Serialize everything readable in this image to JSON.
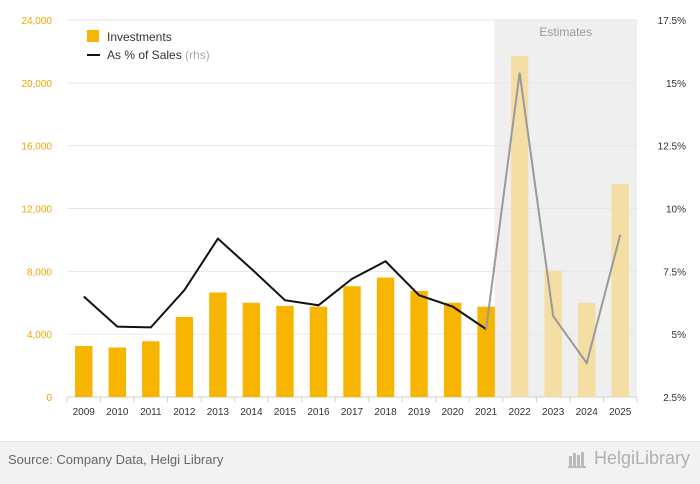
{
  "chart_data": {
    "type": "bar",
    "categories": [
      "2009",
      "2010",
      "2011",
      "2012",
      "2013",
      "2014",
      "2015",
      "2016",
      "2017",
      "2018",
      "2019",
      "2020",
      "2021",
      "2022",
      "2023",
      "2024",
      "2025"
    ],
    "estimate_start_index": 13,
    "estimates_label": "Estimates",
    "series": [
      {
        "name": "Investments",
        "type": "bar",
        "axis": "left",
        "color": "#f7b500",
        "estimate_color": "#f5dea3",
        "values": [
          3250,
          3150,
          3550,
          5100,
          6650,
          6000,
          5800,
          5750,
          7050,
          7600,
          6750,
          6000,
          5750,
          21700,
          8050,
          6000,
          13550
        ]
      },
      {
        "name": "As % of Sales",
        "name_suffix": "(rhs)",
        "type": "line",
        "axis": "right",
        "color": "#111111",
        "estimate_color": "#9a9a9a",
        "values": [
          6.5,
          5.3,
          5.27,
          6.75,
          8.8,
          7.6,
          6.35,
          6.15,
          7.2,
          7.9,
          6.55,
          6.1,
          5.2,
          15.4,
          5.72,
          3.85,
          8.95
        ]
      }
    ],
    "left_axis": {
      "ticks": [
        "0",
        "4,000",
        "8,000",
        "12,000",
        "16,000",
        "20,000",
        "24,000"
      ],
      "min": 0,
      "max": 24000
    },
    "right_axis": {
      "ticks": [
        "2.5%",
        "5%",
        "7.5%",
        "10%",
        "12.5%",
        "15%",
        "17.5%"
      ],
      "min": 2.5,
      "max": 17.5
    },
    "grid": true,
    "legend": "top-left"
  },
  "footer": {
    "source": "Source: Company Data, Helgi Library",
    "brand": "HelgiLibrary",
    "brand_icon": "library-logo-icon"
  },
  "colors": {
    "bar": "#f7b500",
    "bar_estimate": "#f5dea3",
    "line": "#111111",
    "line_estimate": "#9a9a9a",
    "estimates_bg": "#efefef",
    "grid": "#e6e6e6"
  }
}
